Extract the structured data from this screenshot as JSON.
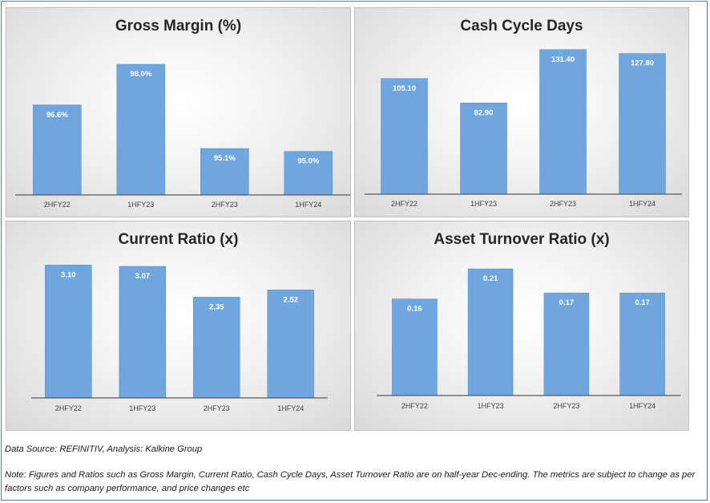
{
  "colors": {
    "bar": "#6fa6de",
    "bar_edge": "#5b95d3",
    "axis": "#595959",
    "label": "#ffffff"
  },
  "chart_data": [
    {
      "type": "bar",
      "title": "Gross Margin (%)",
      "categories": [
        "2HFY22",
        "1HFY23",
        "2HFY23",
        "1HFY24"
      ],
      "values": [
        96.6,
        98.0,
        95.1,
        95.0
      ],
      "data_labels": [
        "96.6%",
        "98.0%",
        "95.1%",
        "95.0%"
      ],
      "ylim": [
        93.5,
        98.5
      ],
      "grid": false
    },
    {
      "type": "bar",
      "title": "Cash Cycle Days",
      "categories": [
        "2HFY22",
        "1HFY23",
        "2HFY23",
        "1HFY24"
      ],
      "values": [
        105.1,
        82.9,
        131.4,
        127.8
      ],
      "data_labels": [
        "105.10",
        "82.90",
        "131.40",
        "127.80"
      ],
      "ylim": [
        0,
        140
      ],
      "grid": false
    },
    {
      "type": "bar",
      "title": "Current Ratio (x)",
      "categories": [
        "2HFY22",
        "1HFY23",
        "2HFY23",
        "1HFY24"
      ],
      "values": [
        3.1,
        3.07,
        2.35,
        2.52
      ],
      "data_labels": [
        "3.10",
        "3.07",
        "2.35",
        "2.52"
      ],
      "ylim": [
        0,
        3.5
      ],
      "grid": false
    },
    {
      "type": "bar",
      "title": "Asset Turnover Ratio (x)",
      "categories": [
        "2HFY22",
        "1HFY23",
        "2HFY23",
        "1HFY24"
      ],
      "values": [
        0.16,
        0.21,
        0.17,
        0.17
      ],
      "data_labels": [
        "0.16",
        "0.21",
        "0.17",
        "0.17"
      ],
      "ylim": [
        0,
        0.25
      ],
      "grid": false
    }
  ],
  "footer": {
    "source": "Data Source: REFINITIV, Analysis: Kalkine Group",
    "note_line1": "Note: Figures and Ratios such as Gross Margin, Current Ratio, Cash Cycle Days, Asset Turnover Ratio  are on half-year Dec-ending. The metrics are subject to change as per",
    "note_line2": "factors such as company performance, and price changes etc"
  }
}
